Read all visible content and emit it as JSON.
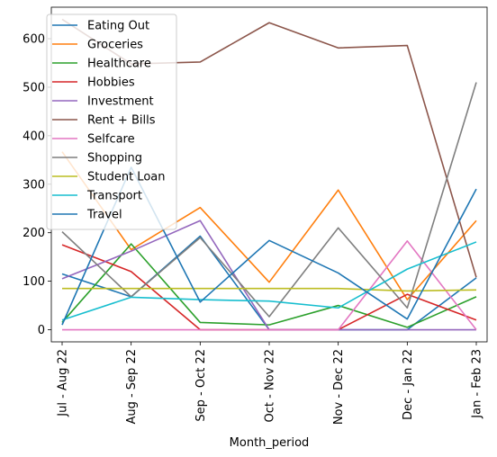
{
  "chart_data": {
    "type": "line",
    "title": "",
    "xlabel": "Month_period",
    "ylabel": "",
    "categories": [
      "Jul - Aug 22",
      "Aug - Sep 22",
      "Sep - Oct 22",
      "Oct - Nov 22",
      "Nov - Dec 22",
      "Dec - Jan 22",
      "Jan - Feb 23"
    ],
    "ylim": [
      -25,
      665
    ],
    "yticks": [
      0,
      100,
      200,
      300,
      400,
      500,
      600
    ],
    "grid": false,
    "legend_position": "upper-left",
    "series": [
      {
        "name": "Eating Out",
        "color": "#1f77b4",
        "values": [
          115,
          68,
          193,
          0,
          0,
          0,
          107
        ]
      },
      {
        "name": "Groceries",
        "color": "#ff7f0e",
        "values": [
          367,
          165,
          252,
          98,
          288,
          62,
          225
        ]
      },
      {
        "name": "Healthcare",
        "color": "#2ca02c",
        "values": [
          15,
          177,
          15,
          10,
          50,
          5,
          68
        ]
      },
      {
        "name": "Hobbies",
        "color": "#d62728",
        "values": [
          175,
          120,
          0,
          0,
          0,
          73,
          20
        ]
      },
      {
        "name": "Investment",
        "color": "#9467bd",
        "values": [
          105,
          162,
          225,
          0,
          0,
          0,
          0
        ]
      },
      {
        "name": "Rent + Bills",
        "color": "#8c564b",
        "values": [
          640,
          548,
          552,
          633,
          581,
          586,
          108
        ]
      },
      {
        "name": "Selfcare",
        "color": "#e377c2",
        "values": [
          0,
          0,
          0,
          0,
          0,
          183,
          0
        ]
      },
      {
        "name": "Shopping",
        "color": "#7f7f7f",
        "values": [
          202,
          68,
          190,
          27,
          210,
          45,
          510
        ]
      },
      {
        "name": "Student Loan",
        "color": "#bcbd22",
        "values": [
          85,
          85,
          85,
          85,
          85,
          80,
          82
        ]
      },
      {
        "name": "Transport",
        "color": "#17becf",
        "values": [
          20,
          67,
          62,
          59,
          45,
          125,
          181
        ]
      },
      {
        "name": "Travel",
        "color": "#1f77b4",
        "values": [
          10,
          335,
          57,
          184,
          117,
          22,
          290
        ]
      }
    ]
  }
}
